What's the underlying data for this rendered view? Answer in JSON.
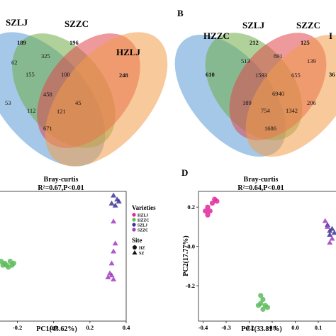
{
  "panels": {
    "A": {
      "label": "",
      "venn": {
        "sets": [
          "SZLJ",
          "SZZC",
          "HZLJ"
        ],
        "regions": [
          "189",
          "196",
          "248",
          "325",
          "62",
          "155",
          "100",
          "45",
          "458",
          "53",
          "112",
          "121",
          "671"
        ],
        "colors": [
          "#5b9bd5",
          "#70ad47",
          "#e0474c",
          "#f29d49"
        ]
      }
    },
    "B": {
      "label": "B",
      "venn": {
        "sets": [
          "HZZC",
          "SZLJ",
          "SZZC",
          "I"
        ],
        "regions": [
          "610",
          "212",
          "125",
          "36",
          "891",
          "513",
          "139",
          "1593",
          "655",
          "6940",
          "189",
          "754",
          "1342",
          "206",
          "1686"
        ],
        "colors": [
          "#5b9bd5",
          "#70ad47",
          "#e0474c",
          "#f29d49"
        ]
      }
    },
    "C": {
      "label": "",
      "chart_data": {
        "type": "scatter",
        "title": "Bray-curtis",
        "subtitle": "R²=0.67,P<0.01",
        "xlabel": "PC1(43.62%)",
        "ylabel": "",
        "xlim": [
          -0.3,
          0.4
        ],
        "ylim": [
          -0.35,
          0.3
        ],
        "xticks": [
          "-0.2",
          "0.0",
          "0.2",
          "0.4"
        ],
        "legend": {
          "varieties_title": "Varieties",
          "varieties": [
            {
              "name": "HZLJ",
              "color": "#e0279c"
            },
            {
              "name": "HZZC",
              "color": "#5cbb5c"
            },
            {
              "name": "SZLJ",
              "color": "#3d3494"
            },
            {
              "name": "SZZC",
              "color": "#a13cc2"
            }
          ],
          "site_title": "Site",
          "sites": [
            {
              "name": "HZ",
              "shape": "circle"
            },
            {
              "name": "SZ",
              "shape": "triangle"
            }
          ]
        },
        "series": [
          {
            "name": "HZZC",
            "shape": "circle",
            "color": "#5cbb5c",
            "points": [
              [
                -0.29,
                -0.05
              ],
              [
                -0.27,
                -0.06
              ],
              [
                -0.26,
                -0.07
              ],
              [
                -0.24,
                -0.05
              ],
              [
                -0.23,
                -0.07
              ],
              [
                -0.22,
                -0.06
              ],
              [
                -0.25,
                -0.08
              ],
              [
                -0.28,
                -0.07
              ]
            ]
          },
          {
            "name": "SZLJ",
            "shape": "triangle",
            "color": "#3d3494",
            "points": [
              [
                0.33,
                0.28
              ],
              [
                0.35,
                0.26
              ],
              [
                0.32,
                0.24
              ],
              [
                0.34,
                0.23
              ],
              [
                0.36,
                0.25
              ]
            ]
          },
          {
            "name": "SZZC",
            "shape": "triangle",
            "color": "#a13cc2",
            "points": [
              [
                0.33,
                0.15
              ],
              [
                0.34,
                0.04
              ],
              [
                0.33,
                0.0
              ],
              [
                0.32,
                -0.06
              ],
              [
                0.31,
                -0.11
              ],
              [
                0.3,
                -0.13
              ],
              [
                0.33,
                -0.14
              ],
              [
                0.32,
                -0.12
              ]
            ]
          }
        ]
      }
    },
    "D": {
      "label": "D",
      "chart_data": {
        "type": "scatter",
        "title": "Bray-curtis",
        "subtitle": "R²=0.64,P<0.01",
        "xlabel": "PC1(33.81%)",
        "ylabel": "PC2(17.77%)",
        "xlim": [
          -0.42,
          0.18
        ],
        "ylim": [
          -0.38,
          0.28
        ],
        "xticks": [
          "-0.4",
          "-0.3",
          "-0.2",
          "-0.1",
          "0.0",
          "0.1"
        ],
        "yticks": [
          "0.2",
          "0.0",
          "-0.2"
        ],
        "series": [
          {
            "name": "HZLJ",
            "shape": "circle",
            "color": "#e0279c",
            "points": [
              [
                -0.35,
                0.24
              ],
              [
                -0.34,
                0.23
              ],
              [
                -0.36,
                0.22
              ],
              [
                -0.38,
                0.2
              ],
              [
                -0.39,
                0.18
              ],
              [
                -0.38,
                0.16
              ],
              [
                -0.37,
                0.18
              ]
            ]
          },
          {
            "name": "HZZC",
            "shape": "circle",
            "color": "#5cbb5c",
            "points": [
              [
                -0.15,
                -0.25
              ],
              [
                -0.14,
                -0.27
              ],
              [
                -0.15,
                -0.29
              ],
              [
                -0.13,
                -0.3
              ],
              [
                -0.14,
                -0.32
              ],
              [
                -0.12,
                -0.31
              ],
              [
                -0.16,
                -0.3
              ]
            ]
          },
          {
            "name": "SZLJ",
            "shape": "triangle",
            "color": "#3d3494",
            "points": [
              [
                0.14,
                0.11
              ],
              [
                0.15,
                0.08
              ],
              [
                0.16,
                0.09
              ],
              [
                0.17,
                0.07
              ],
              [
                0.15,
                0.06
              ]
            ]
          },
          {
            "name": "SZZC",
            "shape": "triangle",
            "color": "#a13cc2",
            "points": [
              [
                0.13,
                0.13
              ],
              [
                0.14,
                0.1
              ],
              [
                0.16,
                0.04
              ],
              [
                0.15,
                0.02
              ]
            ]
          }
        ]
      }
    }
  }
}
